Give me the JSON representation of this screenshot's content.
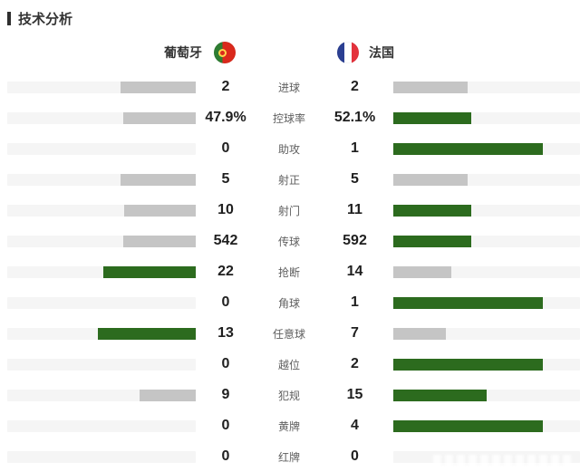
{
  "header": {
    "title": "技术分析"
  },
  "teams": {
    "home": {
      "name": "葡萄牙",
      "flag_icon": "portugal-flag"
    },
    "away": {
      "name": "法国",
      "flag_icon": "france-flag"
    }
  },
  "colors": {
    "win_bar": "#2c6b1e",
    "lose_bar": "#c5c5c5",
    "track": "#f5f5f5",
    "portugal_green": "#2e7d32",
    "portugal_red": "#da291c",
    "portugal_yellow": "#ffd34d",
    "france_blue": "#2b3f92",
    "france_red": "#e4323c"
  },
  "rows": [
    {
      "label": "进球",
      "left": "2",
      "right": "2",
      "left_val": 2,
      "right_val": 2
    },
    {
      "label": "控球率",
      "left": "47.9%",
      "right": "52.1%",
      "left_val": 47.9,
      "right_val": 52.1
    },
    {
      "label": "助攻",
      "left": "0",
      "right": "1",
      "left_val": 0,
      "right_val": 1
    },
    {
      "label": "射正",
      "left": "5",
      "right": "5",
      "left_val": 5,
      "right_val": 5
    },
    {
      "label": "射门",
      "left": "10",
      "right": "11",
      "left_val": 10,
      "right_val": 11
    },
    {
      "label": "传球",
      "left": "542",
      "right": "592",
      "left_val": 542,
      "right_val": 592
    },
    {
      "label": "抢断",
      "left": "22",
      "right": "14",
      "left_val": 22,
      "right_val": 14
    },
    {
      "label": "角球",
      "left": "0",
      "right": "1",
      "left_val": 0,
      "right_val": 1
    },
    {
      "label": "任意球",
      "left": "13",
      "right": "7",
      "left_val": 13,
      "right_val": 7
    },
    {
      "label": "越位",
      "left": "0",
      "right": "2",
      "left_val": 0,
      "right_val": 2
    },
    {
      "label": "犯规",
      "left": "9",
      "right": "15",
      "left_val": 9,
      "right_val": 15
    },
    {
      "label": "黄牌",
      "left": "0",
      "right": "4",
      "left_val": 0,
      "right_val": 4
    },
    {
      "label": "红牌",
      "left": "0",
      "right": "0",
      "left_val": 0,
      "right_val": 0
    }
  ],
  "chart_data": {
    "type": "bar",
    "layout": "horizontal-paired-bars",
    "title": "技术分析",
    "categories": [
      "进球",
      "控球率",
      "助攻",
      "射正",
      "射门",
      "传球",
      "抢断",
      "角球",
      "任意球",
      "越位",
      "犯规",
      "黄牌",
      "红牌"
    ],
    "series": [
      {
        "name": "葡萄牙",
        "values": [
          2,
          47.9,
          0,
          5,
          10,
          542,
          22,
          0,
          13,
          0,
          9,
          0,
          0
        ]
      },
      {
        "name": "法国",
        "values": [
          2,
          52.1,
          1,
          5,
          11,
          592,
          14,
          1,
          7,
          2,
          15,
          4,
          0
        ]
      }
    ],
    "value_labels_shown": true,
    "grid": false,
    "legend_position": "top",
    "bar_scale_rule": "width = value/(home+away) * 80% of track; leader bar green, other gray; equal values both gray"
  }
}
